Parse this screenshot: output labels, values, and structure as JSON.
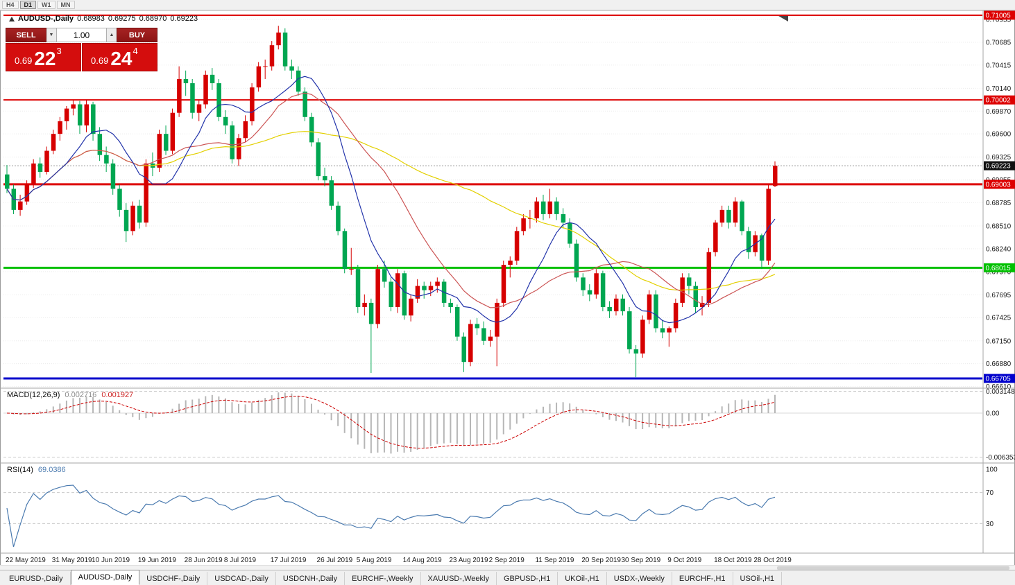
{
  "toolbar": {
    "timeframes": [
      {
        "label": "H4",
        "active": false
      },
      {
        "label": "D1",
        "active": true
      },
      {
        "label": "W1",
        "active": false
      },
      {
        "label": "MN",
        "active": false
      }
    ]
  },
  "chart_header": {
    "title": "AUDUSD-,Daily",
    "open": "0.68983",
    "high": "0.69275",
    "low": "0.68970",
    "close": "0.69223"
  },
  "trade_panel": {
    "sell_label": "SELL",
    "buy_label": "BUY",
    "volume": "1.00",
    "sell_price": {
      "base": "0.69",
      "big": "22",
      "sup": "3"
    },
    "buy_price": {
      "base": "0.69",
      "big": "24",
      "sup": "4"
    }
  },
  "price_axis": {
    "ticks": [
      "0.70955",
      "0.70685",
      "0.70415",
      "0.70140",
      "0.69870",
      "0.69600",
      "0.69325",
      "0.69055",
      "0.68785",
      "0.68510",
      "0.68240",
      "0.67970",
      "0.67695",
      "0.67425",
      "0.67150",
      "0.66880",
      "0.66610"
    ],
    "current_price": {
      "text": "0.69223",
      "value": 0.69223,
      "bg": "#111111"
    }
  },
  "levels": [
    {
      "text": "0.71005",
      "value": 0.71005,
      "color": "#dd0000",
      "width": 2
    },
    {
      "text": "0.70002",
      "value": 0.70002,
      "color": "#dd0000",
      "width": 2
    },
    {
      "text": "0.69003",
      "value": 0.69003,
      "color": "#dd0000",
      "width": 3
    },
    {
      "text": "0.68015",
      "value": 0.68015,
      "color": "#00c000",
      "width": 3
    },
    {
      "text": "0.66705",
      "value": 0.66705,
      "color": "#0000cc",
      "width": 3
    }
  ],
  "macd_panel": {
    "label": "MACD(12,26,9)",
    "value_main": "0.002716",
    "value_signal": "0.001927",
    "axis_labels": [
      {
        "text": "0.003148",
        "value": 0.003148
      },
      {
        "text": "0.00",
        "value": 0
      },
      {
        "text": "-0.006353",
        "value": -0.006353
      }
    ],
    "histogram_color": "#b6b6b6",
    "signal_color": "#cc0000"
  },
  "rsi_panel": {
    "label": "RSI(14)",
    "value": "69.0386",
    "axis_labels": [
      {
        "text": "100",
        "value": 100
      },
      {
        "text": "70",
        "value": 70
      },
      {
        "text": "30",
        "value": 30
      }
    ],
    "dashed_levels": [
      70,
      30
    ],
    "line_color": "#4a7aaf"
  },
  "x_axis": {
    "labels": [
      {
        "text": "22 May 2019",
        "bar": 0
      },
      {
        "text": "31 May 2019",
        "bar": 7
      },
      {
        "text": "10 Jun 2019",
        "bar": 13
      },
      {
        "text": "19 Jun 2019",
        "bar": 20
      },
      {
        "text": "28 Jun 2019",
        "bar": 27
      },
      {
        "text": "8 Jul 2019",
        "bar": 33
      },
      {
        "text": "17 Jul 2019",
        "bar": 40
      },
      {
        "text": "26 Jul 2019",
        "bar": 47
      },
      {
        "text": "5 Aug 2019",
        "bar": 53
      },
      {
        "text": "14 Aug 2019",
        "bar": 60
      },
      {
        "text": "23 Aug 2019",
        "bar": 67
      },
      {
        "text": "2 Sep 2019",
        "bar": 73
      },
      {
        "text": "11 Sep 2019",
        "bar": 80
      },
      {
        "text": "20 Sep 2019",
        "bar": 87
      },
      {
        "text": "30 Sep 2019",
        "bar": 93
      },
      {
        "text": "9 Oct 2019",
        "bar": 100
      },
      {
        "text": "18 Oct 2019",
        "bar": 107
      },
      {
        "text": "28 Oct 2019",
        "bar": 113
      }
    ]
  },
  "tabs": [
    {
      "label": "EURUSD-,Daily",
      "active": false
    },
    {
      "label": "AUDUSD-,Daily",
      "active": true
    },
    {
      "label": "USDCHF-,Daily",
      "active": false
    },
    {
      "label": "USDCAD-,Daily",
      "active": false
    },
    {
      "label": "USDCNH-,Daily",
      "active": false
    },
    {
      "label": "EURCHF-,Weekly",
      "active": false
    },
    {
      "label": "XAUUSD-,Weekly",
      "active": false
    },
    {
      "label": "GBPUSD-,H1",
      "active": false
    },
    {
      "label": "UKOil-,H1",
      "active": false
    },
    {
      "label": "USDX-,Weekly",
      "active": false
    },
    {
      "label": "EURCHF-,H1",
      "active": false
    },
    {
      "label": "USOil-,H1",
      "active": false
    }
  ],
  "chart_data": {
    "type": "candlestick",
    "symbol": "AUDUSD-",
    "timeframe": "Daily",
    "up_color": "#d60000",
    "down_color": "#00a651",
    "price_range": [
      0.6659,
      0.71062
    ],
    "moving_averages": [
      {
        "period": 50,
        "color": "#e3d000"
      },
      {
        "period": 21,
        "color": "#cc5555"
      },
      {
        "period": 10,
        "color": "#2233aa"
      }
    ],
    "macd": {
      "fast": 12,
      "slow": 26,
      "signal": 9,
      "range": [
        -0.0072,
        0.0036
      ]
    },
    "rsi": {
      "period": 14,
      "range": [
        -8,
        108
      ]
    },
    "candles": [
      [
        0.6912,
        0.6923,
        0.689,
        0.6895
      ],
      [
        0.6895,
        0.69,
        0.6865,
        0.687
      ],
      [
        0.687,
        0.6888,
        0.6863,
        0.688
      ],
      [
        0.688,
        0.6905,
        0.6876,
        0.69
      ],
      [
        0.69,
        0.693,
        0.6896,
        0.6925
      ],
      [
        0.6925,
        0.6932,
        0.6908,
        0.6915
      ],
      [
        0.6915,
        0.6945,
        0.6912,
        0.694
      ],
      [
        0.694,
        0.6965,
        0.6936,
        0.696
      ],
      [
        0.696,
        0.698,
        0.6952,
        0.6975
      ],
      [
        0.6975,
        0.6993,
        0.6965,
        0.699
      ],
      [
        0.699,
        0.7,
        0.6982,
        0.6995
      ],
      [
        0.6995,
        0.6999,
        0.696,
        0.697
      ],
      [
        0.697,
        0.7,
        0.6962,
        0.6995
      ],
      [
        0.6995,
        0.6998,
        0.6952,
        0.696
      ],
      [
        0.696,
        0.6968,
        0.6928,
        0.6935
      ],
      [
        0.6935,
        0.6945,
        0.6915,
        0.6925
      ],
      [
        0.6925,
        0.693,
        0.6888,
        0.6895
      ],
      [
        0.6895,
        0.69,
        0.6862,
        0.687
      ],
      [
        0.687,
        0.6878,
        0.6832,
        0.6845
      ],
      [
        0.6845,
        0.688,
        0.684,
        0.6875
      ],
      [
        0.6875,
        0.6882,
        0.6848,
        0.6855
      ],
      [
        0.6855,
        0.693,
        0.685,
        0.6925
      ],
      [
        0.6925,
        0.6938,
        0.691,
        0.692
      ],
      [
        0.692,
        0.6965,
        0.6915,
        0.696
      ],
      [
        0.696,
        0.697,
        0.6935,
        0.694
      ],
      [
        0.694,
        0.699,
        0.6936,
        0.6985
      ],
      [
        0.6985,
        0.704,
        0.698,
        0.7025
      ],
      [
        0.7025,
        0.7035,
        0.7005,
        0.702
      ],
      [
        0.702,
        0.7025,
        0.6978,
        0.6985
      ],
      [
        0.6985,
        0.7,
        0.6975,
        0.6995
      ],
      [
        0.6995,
        0.7035,
        0.699,
        0.703
      ],
      [
        0.703,
        0.7038,
        0.7012,
        0.702
      ],
      [
        0.702,
        0.7025,
        0.6975,
        0.698
      ],
      [
        0.698,
        0.6988,
        0.696,
        0.697
      ],
      [
        0.697,
        0.6975,
        0.6925,
        0.693
      ],
      [
        0.693,
        0.696,
        0.6922,
        0.6955
      ],
      [
        0.6955,
        0.6982,
        0.695,
        0.6975
      ],
      [
        0.6975,
        0.702,
        0.697,
        0.7015
      ],
      [
        0.7015,
        0.7045,
        0.701,
        0.704
      ],
      [
        0.704,
        0.7048,
        0.7025,
        0.704
      ],
      [
        0.704,
        0.707,
        0.7035,
        0.7065
      ],
      [
        0.7065,
        0.7088,
        0.706,
        0.708
      ],
      [
        0.708,
        0.7085,
        0.7035,
        0.704
      ],
      [
        0.704,
        0.7048,
        0.7025,
        0.7035
      ],
      [
        0.7035,
        0.704,
        0.7005,
        0.701
      ],
      [
        0.701,
        0.7015,
        0.6975,
        0.698
      ],
      [
        0.698,
        0.6985,
        0.6945,
        0.695
      ],
      [
        0.695,
        0.6955,
        0.6905,
        0.691
      ],
      [
        0.691,
        0.692,
        0.6898,
        0.6905
      ],
      [
        0.6905,
        0.691,
        0.687,
        0.6875
      ],
      [
        0.6875,
        0.688,
        0.684,
        0.6845
      ],
      [
        0.6845,
        0.6848,
        0.6795,
        0.68
      ],
      [
        0.68,
        0.6825,
        0.6793,
        0.68
      ],
      [
        0.68,
        0.6805,
        0.6748,
        0.6755
      ],
      [
        0.6755,
        0.677,
        0.6745,
        0.676
      ],
      [
        0.676,
        0.6765,
        0.6677,
        0.6735
      ],
      [
        0.6735,
        0.6805,
        0.673,
        0.68
      ],
      [
        0.68,
        0.681,
        0.6778,
        0.6785
      ],
      [
        0.6785,
        0.679,
        0.675,
        0.6755
      ],
      [
        0.6755,
        0.68,
        0.6748,
        0.6795
      ],
      [
        0.6795,
        0.6798,
        0.674,
        0.6745
      ],
      [
        0.6745,
        0.677,
        0.6738,
        0.6765
      ],
      [
        0.6765,
        0.6788,
        0.676,
        0.678
      ],
      [
        0.678,
        0.6785,
        0.6765,
        0.6775
      ],
      [
        0.6775,
        0.6785,
        0.6768,
        0.678
      ],
      [
        0.678,
        0.679,
        0.6772,
        0.6785
      ],
      [
        0.6785,
        0.6788,
        0.6755,
        0.676
      ],
      [
        0.676,
        0.6765,
        0.6748,
        0.6755
      ],
      [
        0.6755,
        0.6758,
        0.6715,
        0.672
      ],
      [
        0.672,
        0.6725,
        0.6678,
        0.669
      ],
      [
        0.669,
        0.674,
        0.6685,
        0.6735
      ],
      [
        0.6735,
        0.6742,
        0.6722,
        0.673
      ],
      [
        0.673,
        0.6738,
        0.671,
        0.6715
      ],
      [
        0.6715,
        0.6728,
        0.6708,
        0.672
      ],
      [
        0.672,
        0.6765,
        0.6685,
        0.676
      ],
      [
        0.676,
        0.681,
        0.6755,
        0.6805
      ],
      [
        0.6805,
        0.6815,
        0.679,
        0.681
      ],
      [
        0.681,
        0.685,
        0.6805,
        0.6845
      ],
      [
        0.6845,
        0.6865,
        0.684,
        0.686
      ],
      [
        0.686,
        0.687,
        0.6848,
        0.686
      ],
      [
        0.686,
        0.6885,
        0.6855,
        0.688
      ],
      [
        0.688,
        0.6888,
        0.6858,
        0.6865
      ],
      [
        0.6865,
        0.6895,
        0.686,
        0.688
      ],
      [
        0.688,
        0.6885,
        0.6858,
        0.6865
      ],
      [
        0.6865,
        0.6872,
        0.6848,
        0.6855
      ],
      [
        0.6855,
        0.686,
        0.6825,
        0.683
      ],
      [
        0.683,
        0.6835,
        0.6785,
        0.679
      ],
      [
        0.679,
        0.6795,
        0.6768,
        0.6775
      ],
      [
        0.6775,
        0.6782,
        0.6762,
        0.677
      ],
      [
        0.677,
        0.68,
        0.6765,
        0.6795
      ],
      [
        0.6795,
        0.6798,
        0.675,
        0.6755
      ],
      [
        0.6755,
        0.6762,
        0.6742,
        0.675
      ],
      [
        0.675,
        0.677,
        0.6745,
        0.6765
      ],
      [
        0.6765,
        0.677,
        0.6745,
        0.675
      ],
      [
        0.675,
        0.6755,
        0.67,
        0.6705
      ],
      [
        0.6705,
        0.671,
        0.6672,
        0.67
      ],
      [
        0.67,
        0.6745,
        0.6695,
        0.674
      ],
      [
        0.674,
        0.6775,
        0.6735,
        0.677
      ],
      [
        0.677,
        0.6775,
        0.6725,
        0.673
      ],
      [
        0.673,
        0.674,
        0.6718,
        0.6725
      ],
      [
        0.6725,
        0.6732,
        0.6708,
        0.673
      ],
      [
        0.673,
        0.6765,
        0.6725,
        0.676
      ],
      [
        0.676,
        0.6795,
        0.6755,
        0.679
      ],
      [
        0.679,
        0.6795,
        0.677,
        0.678
      ],
      [
        0.678,
        0.6785,
        0.6748,
        0.6755
      ],
      [
        0.6755,
        0.6768,
        0.6745,
        0.676
      ],
      [
        0.676,
        0.6825,
        0.6755,
        0.682
      ],
      [
        0.682,
        0.6858,
        0.6815,
        0.6855
      ],
      [
        0.6855,
        0.6875,
        0.685,
        0.687
      ],
      [
        0.687,
        0.6875,
        0.6848,
        0.6855
      ],
      [
        0.6855,
        0.6885,
        0.685,
        0.688
      ],
      [
        0.688,
        0.6882,
        0.684,
        0.6845
      ],
      [
        0.6845,
        0.685,
        0.6812,
        0.682
      ],
      [
        0.682,
        0.6845,
        0.6815,
        0.684
      ],
      [
        0.684,
        0.6842,
        0.68,
        0.681
      ],
      [
        0.681,
        0.69,
        0.6805,
        0.6895
      ],
      [
        0.68983,
        0.69275,
        0.6897,
        0.69223
      ]
    ]
  }
}
